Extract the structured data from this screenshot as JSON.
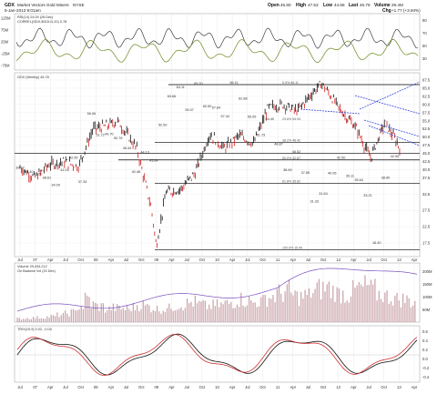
{
  "header": {
    "symbol": "GDX",
    "name": "Market Vectors Gold Miners",
    "exchange": "NYSE",
    "date_line": "5-Jan-2013 9:01am",
    "quote": {
      "open_label": "Open",
      "open": "45.80",
      "high_label": "High",
      "high": "47.53",
      "low_label": "Low",
      "low": "44.68",
      "last_label": "Last",
      "last": "46.78",
      "volume_label": "Volume",
      "volume": "29.4M",
      "chg_label": "Chg",
      "chg": "+1.77 (+3.94%)"
    }
  },
  "panels": {
    "rsi_legend": "RSI(14) 24.09 (28 Dec)",
    "rsi_legend2": "CORREL(GDX,$GOLD,20) 0.78",
    "price_legend": "GDX (Weekly) 46.78",
    "volume_legend": "Volume 29,434,212",
    "volume_legend2": "On Balance Vol (20 Dec)",
    "trix_legend": "TRIX(15,9) 0.02, -0.04"
  },
  "chart_data": {
    "type": "line",
    "title": "GDX Market Vectors Gold Miners",
    "price_yticks": [
      "67.5",
      "65.0",
      "62.5",
      "60.0",
      "57.5",
      "55.0",
      "52.5",
      "50.0",
      "47.5",
      "45.0",
      "42.5",
      "40.0",
      "37.5",
      "32.5",
      "27.5",
      "22.5",
      "17.5"
    ],
    "rsi_yticks": [
      "125M",
      "75M",
      "25M",
      "-25M",
      "-75M"
    ],
    "rsi_right_ticks": [
      "90",
      "70",
      "50",
      "30"
    ],
    "volume_right_ticks": [
      "200M",
      "150M",
      "100M",
      "50M"
    ],
    "trix_right_ticks": [
      "0.6",
      "0.4",
      "0.2",
      "0.0",
      "-0.2",
      "-0.4"
    ],
    "x_labels": [
      "Jul",
      "07",
      "Apr",
      "Jul",
      "Oct",
      "08",
      "Apr",
      "Jul",
      "Oct",
      "09",
      "Apr",
      "Jul",
      "Oct",
      "10",
      "Apr",
      "Jul",
      "Oct",
      "11",
      "Apr",
      "Jul",
      "Oct",
      "12",
      "Apr",
      "Jul",
      "Oct",
      "13",
      "Apr"
    ],
    "series": [
      {
        "name": "GDX (Weekly)",
        "x": [
          "Jul 06",
          "Oct 06",
          "Jan 07",
          "Apr 07",
          "Jul 07",
          "Oct 07",
          "Jan 08",
          "Mar 08",
          "Jul 08",
          "Oct 08",
          "Nov 08",
          "Jan 09",
          "Apr 09",
          "Jul 09",
          "Oct 09",
          "Jan 10",
          "Apr 10",
          "Jul 10",
          "Oct 10",
          "Jan 11",
          "Apr 11",
          "Jul 11",
          "Sep 11",
          "Jan 12",
          "Apr 12",
          "Jul 12",
          "Oct 12",
          "Jan 13"
        ],
        "values": [
          40.6,
          37.5,
          41.5,
          42.5,
          41.0,
          52.5,
          53.5,
          55.0,
          46.5,
          28.0,
          16.5,
          33.0,
          34.0,
          39.0,
          51.0,
          46.5,
          50.5,
          48.0,
          59.0,
          60.0,
          58.0,
          63.5,
          66.5,
          58.0,
          53.0,
          43.5,
          54.5,
          46.8
        ]
      }
    ],
    "price_annotations": [
      "39.42",
      "40.40",
      "37.50",
      "38.61",
      "34.09",
      "41.04",
      "42.55",
      "37.33",
      "56.06",
      "51.72",
      "49.70",
      "50.76",
      "45.44",
      "40.48",
      "44.13",
      "43.84",
      "52.50",
      "63.66",
      "64.11",
      "59.37",
      "65.20",
      "60.50",
      "57.84",
      "57.44",
      "66.11",
      "62.88",
      "55.05",
      "51.73",
      "54.40",
      "48.87",
      "38.69",
      "46.52",
      "37.85",
      "31.33",
      "31.54",
      "40.06",
      "42.50",
      "39.11",
      "35.64",
      "33.21",
      "16.40",
      "38.60",
      "42.95"
    ],
    "fib_labels": [
      "0.0% 66.11",
      "23.6% 54.94",
      "38.2% 48.42",
      "50.0% 42.87",
      "61.8% 35.82",
      "100.0% 15.40"
    ],
    "volume_values": [
      12,
      14,
      15,
      16,
      18,
      20,
      25,
      30,
      35,
      55,
      80,
      60,
      55,
      45,
      50,
      48,
      46,
      52,
      60,
      55,
      50,
      45,
      48,
      55,
      60,
      65,
      70,
      62,
      55,
      58,
      60,
      65,
      70,
      80,
      75,
      68,
      72,
      85,
      90,
      100,
      110,
      95,
      88,
      92,
      105,
      115,
      120,
      110,
      100,
      95,
      108,
      118,
      125,
      112,
      98,
      90,
      85,
      80,
      78,
      70
    ]
  }
}
